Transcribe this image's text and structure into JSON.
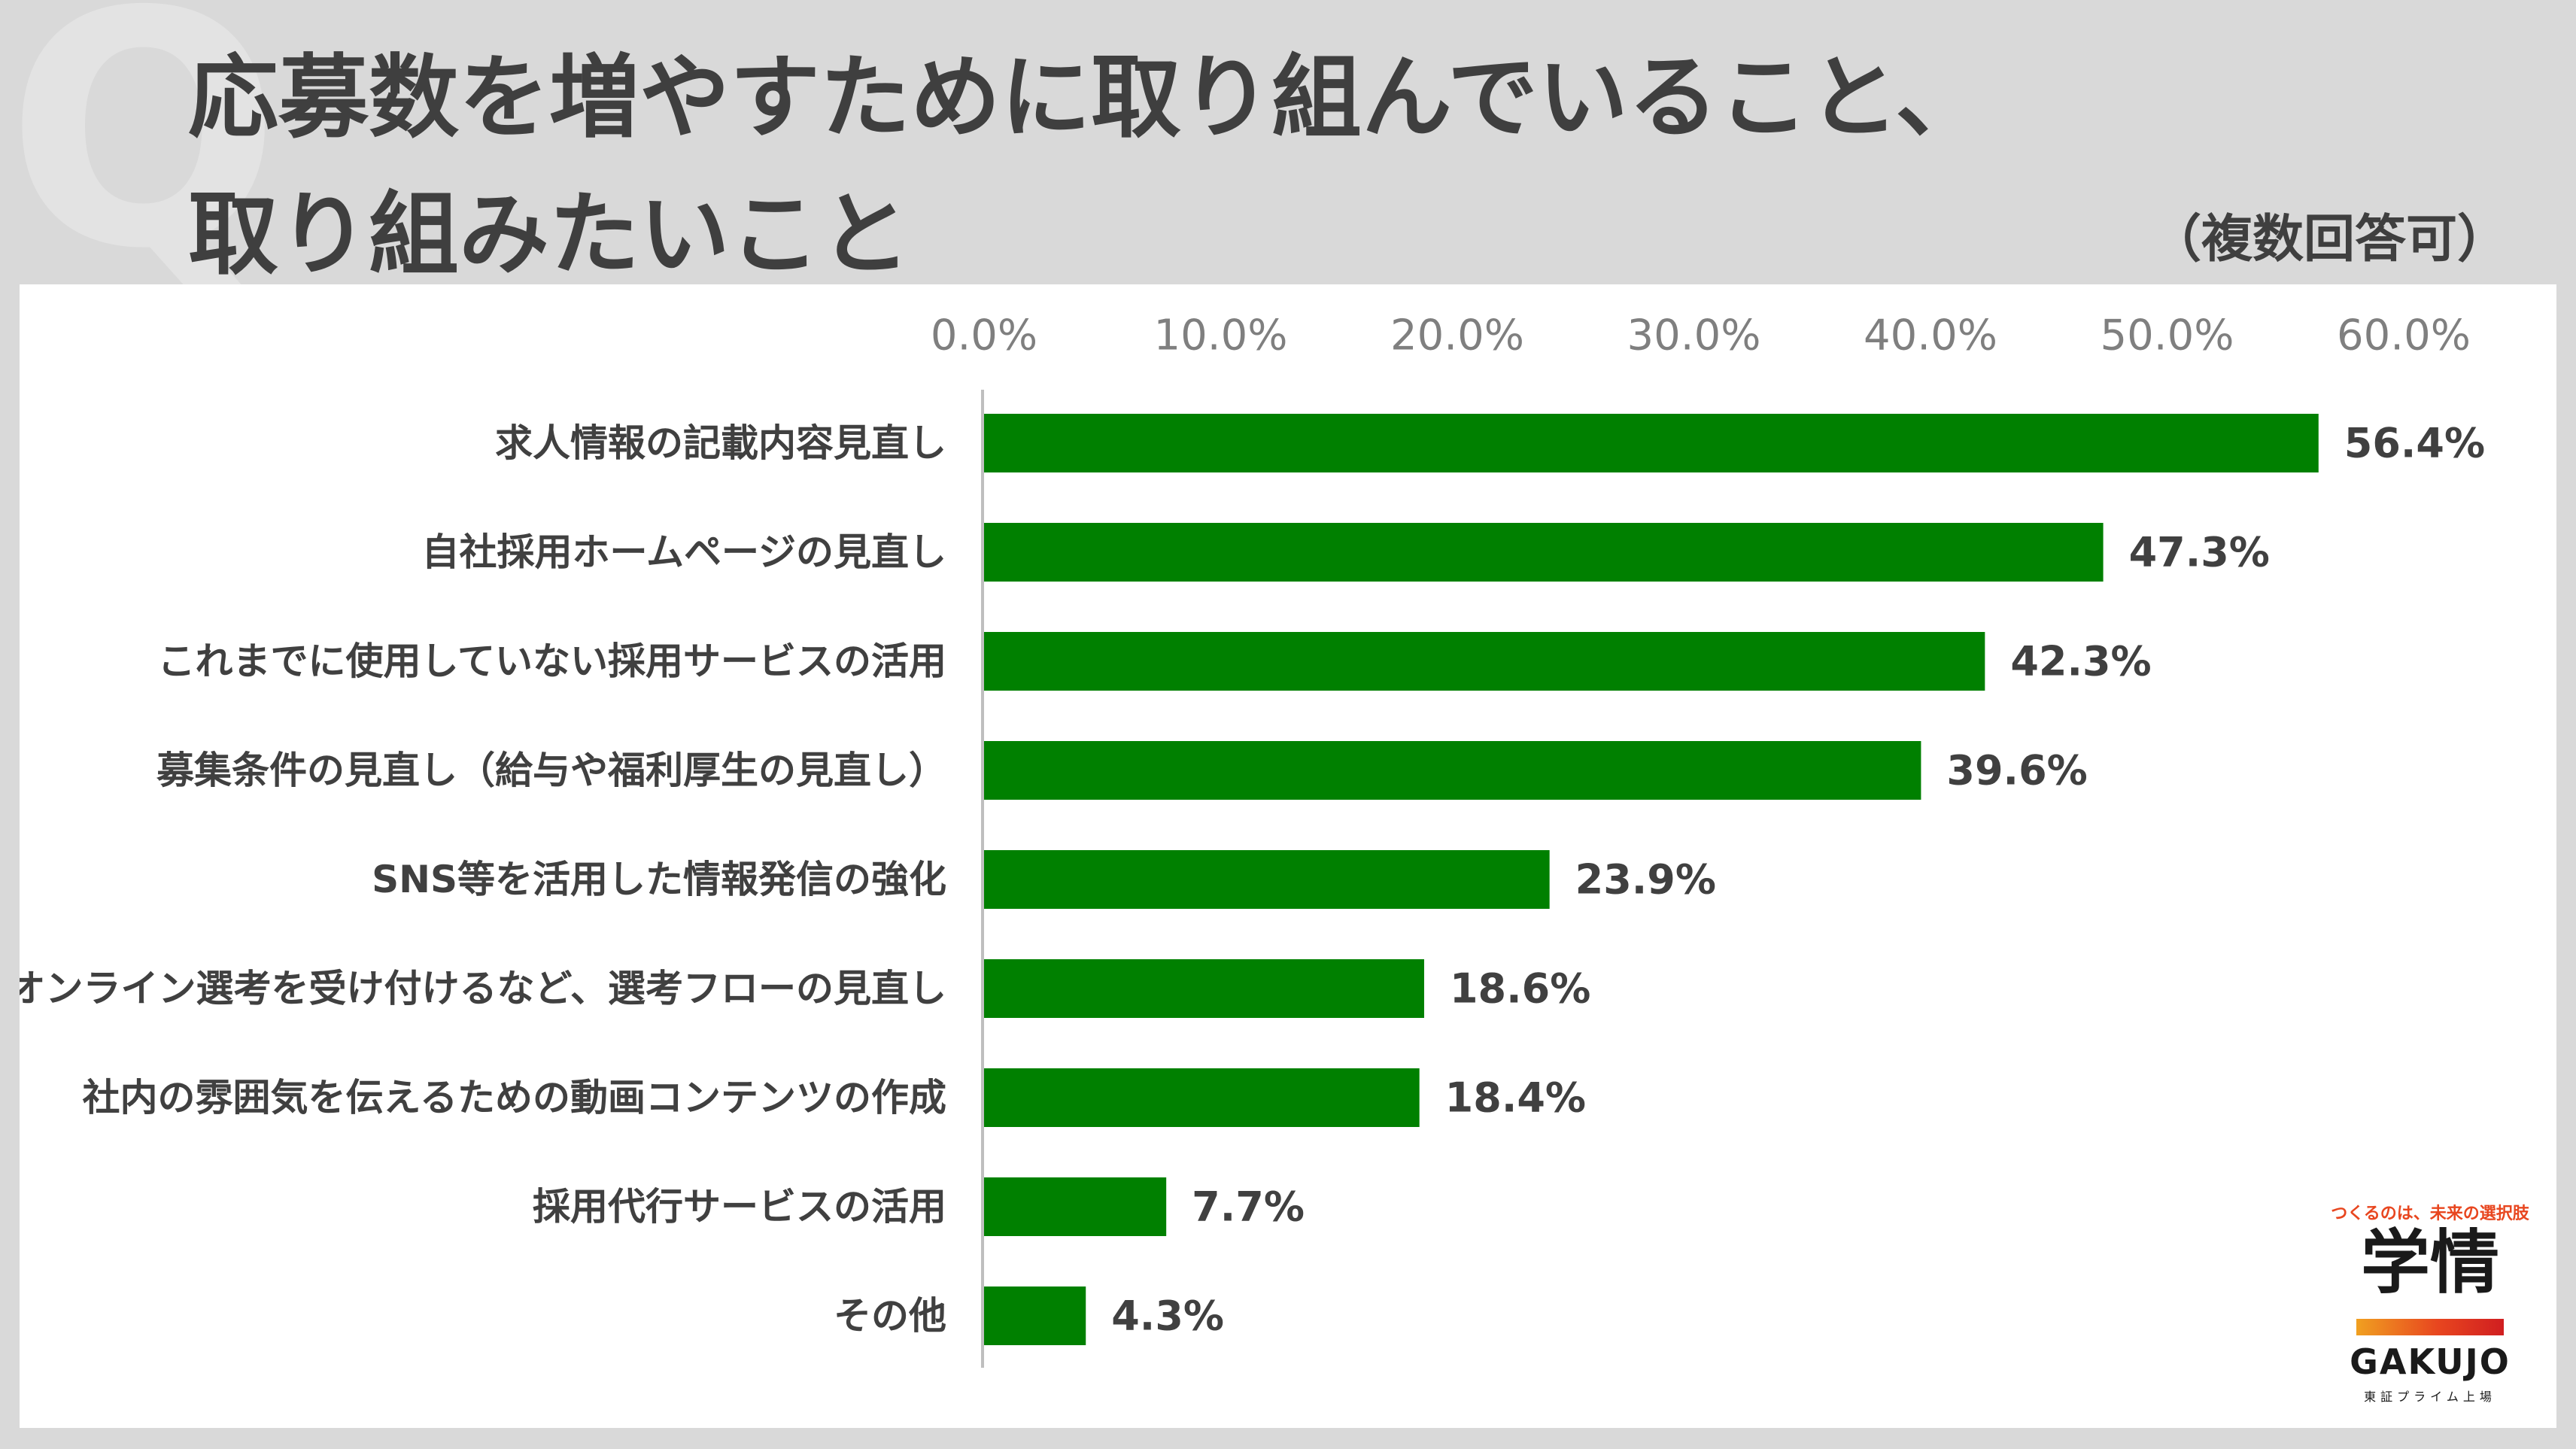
{
  "header": {
    "q_mark": "Q",
    "title_line1": "応募数を増やすために取り組んでいること、",
    "title_line2": "取り組みたいこと",
    "note": "（複数回答可）"
  },
  "colors": {
    "bar": "#008000",
    "axis": "#bfbfbf"
  },
  "logo": {
    "tagline": "つくるのは、未来の選択肢",
    "mark": "学情",
    "word": "GAKUJO",
    "sub": "東証プライム上場"
  },
  "chart_data": {
    "type": "bar",
    "orientation": "horizontal",
    "xlim": [
      0,
      60
    ],
    "ticks": [
      "0.0%",
      "10.0%",
      "20.0%",
      "30.0%",
      "40.0%",
      "50.0%",
      "60.0%"
    ],
    "tick_values": [
      0,
      10,
      20,
      30,
      40,
      50,
      60
    ],
    "grid": false,
    "categories": [
      "求人情報の記載内容見直し",
      "自社採用ホームページの見直し",
      "これまでに使用していない採用サービスの活用",
      "募集条件の見直し（給与や福利厚生の見直し）",
      "SNS等を活用した情報発信の強化",
      "オンライン選考を受け付けるなど、選考フローの見直し",
      "社内の雰囲気を伝えるための動画コンテンツの作成",
      "採用代行サービスの活用",
      "その他"
    ],
    "values": [
      56.4,
      47.3,
      42.3,
      39.6,
      23.9,
      18.6,
      18.4,
      7.7,
      4.3
    ],
    "value_labels": [
      "56.4%",
      "47.3%",
      "42.3%",
      "39.6%",
      "23.9%",
      "18.6%",
      "18.4%",
      "7.7%",
      "4.3%"
    ]
  }
}
